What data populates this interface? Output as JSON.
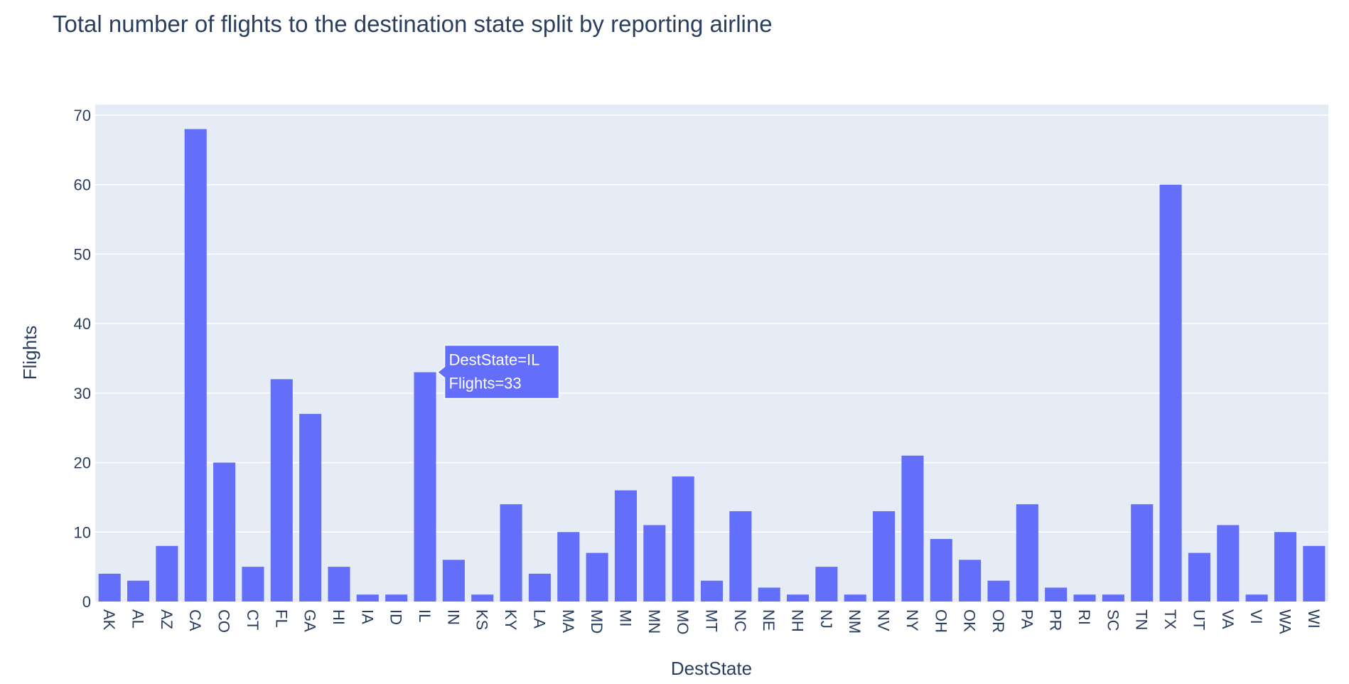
{
  "chart_data": {
    "type": "bar",
    "title": "Total number of flights to the destination state split by reporting airline",
    "xlabel": "DestState",
    "ylabel": "Flights",
    "ylim": [
      0,
      70
    ],
    "yticks": [
      0,
      10,
      20,
      30,
      40,
      50,
      60,
      70
    ],
    "grid": true,
    "bar_color": "#636efa",
    "plot_bg": "#e5ecf6",
    "categories": [
      "AK",
      "AL",
      "AZ",
      "CA",
      "CO",
      "CT",
      "FL",
      "GA",
      "HI",
      "IA",
      "ID",
      "IL",
      "IN",
      "KS",
      "KY",
      "LA",
      "MA",
      "MD",
      "MI",
      "MN",
      "MO",
      "MT",
      "NC",
      "NE",
      "NH",
      "NJ",
      "NM",
      "NV",
      "NY",
      "OH",
      "OK",
      "OR",
      "PA",
      "PR",
      "RI",
      "SC",
      "TN",
      "TX",
      "UT",
      "VA",
      "VI",
      "WA",
      "WI"
    ],
    "values": [
      4,
      3,
      8,
      68,
      20,
      5,
      32,
      27,
      5,
      1,
      1,
      33,
      6,
      1,
      14,
      4,
      10,
      7,
      16,
      11,
      18,
      3,
      13,
      2,
      1,
      5,
      1,
      13,
      21,
      9,
      6,
      3,
      14,
      2,
      1,
      1,
      14,
      60,
      7,
      11,
      1,
      10,
      8
    ],
    "tooltip": {
      "category": "IL",
      "line1": "DestState=IL",
      "line2": "Flights=33"
    }
  }
}
